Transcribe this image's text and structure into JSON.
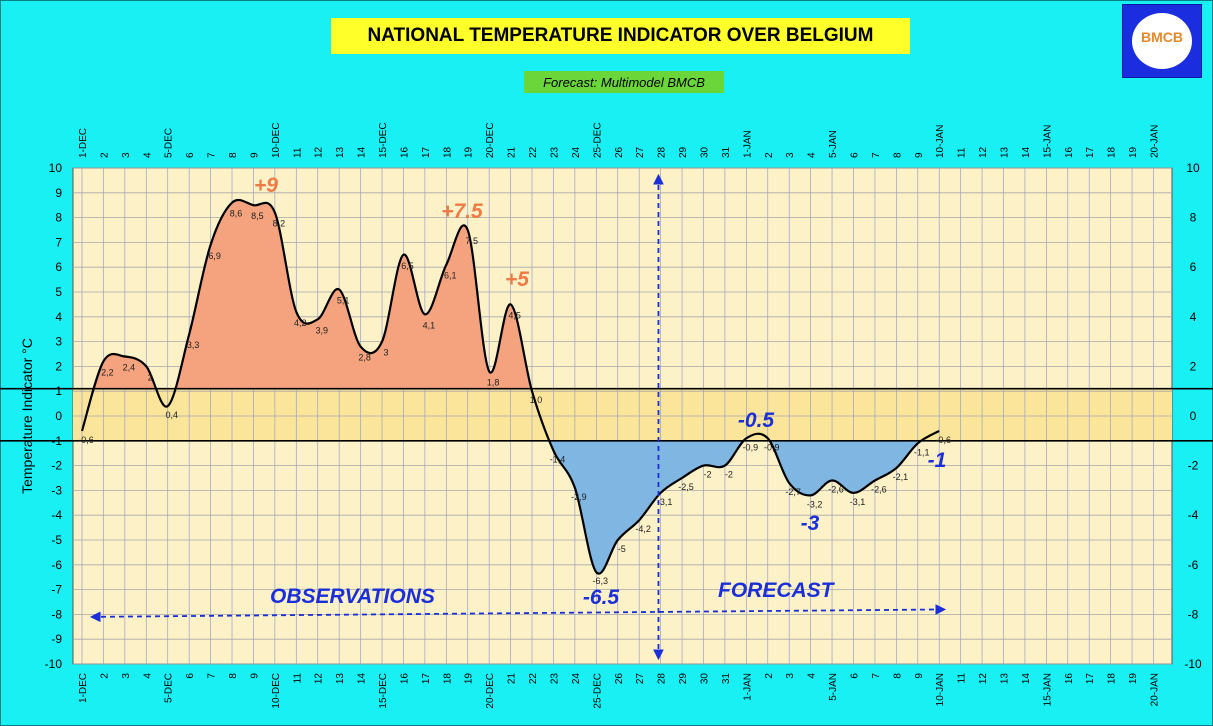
{
  "title": "NATIONAL TEMPERATURE INDICATOR OVER  BELGIUM",
  "subtitle": "Forecast:  Multimodel BMCB",
  "logo_text": "BMCB",
  "colors": {
    "background": "#19f0f4",
    "plot": "#fdf1c8",
    "normal_band": "#fbe59a",
    "warm_fill": "#f5a37e",
    "cold_fill": "#7fb7e2",
    "warm_label": "#f07a45",
    "cold_label": "#1a2fd8"
  },
  "chart_data": {
    "type": "area",
    "ylabel": "Temperature Indicator   °C",
    "ylim": [
      -10,
      10
    ],
    "yticks_left": [
      "10",
      "9",
      "8",
      "7",
      "6",
      "5",
      "4",
      "3",
      "2",
      "1",
      "0",
      "-1",
      "-2",
      "-3",
      "-4",
      "-5",
      "-6",
      "-7",
      "-8",
      "-9",
      "-10"
    ],
    "yticks_right": [
      "10",
      "8",
      "6",
      "4",
      "2",
      "0",
      "-2",
      "-4",
      "-6",
      "-8",
      "-10"
    ],
    "x_tick_labels": [
      "1-DEC",
      "2",
      "3",
      "4",
      "5-DEC",
      "6",
      "7",
      "8",
      "9",
      "10-DEC",
      "11",
      "12",
      "13",
      "14",
      "15-DEC",
      "16",
      "17",
      "18",
      "19",
      "20-DEC",
      "21",
      "22",
      "23",
      "24",
      "25-DEC",
      "26",
      "27",
      "28",
      "29",
      "30",
      "31",
      "1-JAN",
      "2",
      "3",
      "4",
      "5-JAN",
      "6",
      "7",
      "8",
      "9",
      "10-JAN",
      "11",
      "12",
      "13",
      "14",
      "15-JAN",
      "16",
      "17",
      "18",
      "19",
      "20-JAN",
      "21"
    ],
    "normal_band": [
      -1,
      1.1
    ],
    "series": [
      {
        "values": [
          -0.6,
          2.2,
          2.4,
          2.0,
          0.4,
          3.3,
          6.9,
          8.6,
          8.5,
          8.2,
          4.2,
          3.9,
          5.1,
          2.8,
          3.0,
          6.5,
          4.1,
          6.1,
          7.5,
          1.8,
          4.5,
          1.0,
          -1.4,
          -2.9,
          -6.3,
          -5.0,
          -4.2,
          -3.1,
          -2.5,
          -2.0,
          -2.0,
          -0.9,
          -0.9,
          -2.7,
          -3.2,
          -2.6,
          -3.1,
          -2.6,
          -2.1,
          -1.1,
          -0.6
        ]
      }
    ],
    "point_labels": [
      "-0,6",
      "2,2",
      "2,4",
      "2",
      "0,4",
      "3,3",
      "6,9",
      "8,6",
      "8,5",
      "8,2",
      "4,2",
      "3,9",
      "5,1",
      "2,8",
      "3",
      "6,5",
      "4,1",
      "6,1",
      "7,5",
      "1,8",
      "4,5",
      "1,0",
      "-1,4",
      "-2,9",
      "-6,3",
      "-5",
      "-4,2",
      "-3,1",
      "-2,5",
      "-2",
      "-2",
      "-0,9",
      "-0,9",
      "-2,7",
      "-3,2",
      "-2,6",
      "-3,1",
      "-2,6",
      "-2,1",
      "-1,1",
      "-0,6"
    ],
    "annotations": [
      {
        "text": "+9",
        "kind": "warm"
      },
      {
        "text": "+7.5",
        "kind": "warm"
      },
      {
        "text": "+5",
        "kind": "warm"
      },
      {
        "text": "-0.5",
        "kind": "cold"
      },
      {
        "text": "-1",
        "kind": "cold"
      },
      {
        "text": "-3",
        "kind": "cold"
      },
      {
        "text": "-6.5",
        "kind": "cold"
      }
    ],
    "observations_label": "OBSERVATIONS",
    "forecast_label": "FORECAST"
  }
}
